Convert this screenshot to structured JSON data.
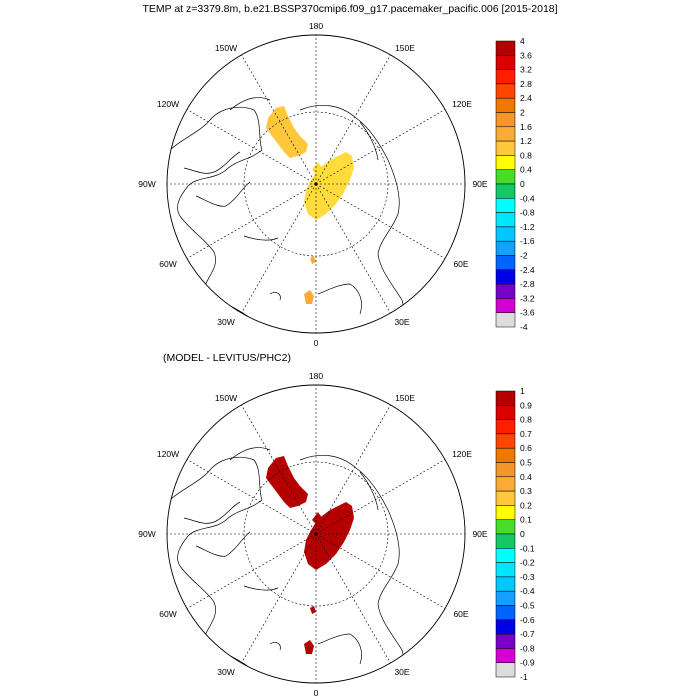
{
  "title": "TEMP at z=3379.8m, b.e21.BSSP370cmip6.f09_g17.pacemaker_pacific.006 [2015-2018]",
  "subtitle": "(MODEL - LEVITUS/PHC2)",
  "top_panel": {
    "lon_labels": {
      "lon_180": "180",
      "lon_150W": "150W",
      "lon_150E": "150E",
      "lon_120W": "120W",
      "lon_120E": "120E",
      "lon_90W": "90W",
      "lon_90E": "90E",
      "lon_60W": "60W",
      "lon_60E": "60E",
      "lon_30W": "30W",
      "lon_30E": "30E",
      "lon_0": "0"
    },
    "colorbar_labels": [
      "4",
      "3.6",
      "3.2",
      "2.8",
      "2.4",
      "2",
      "1.6",
      "1.2",
      "0.8",
      "0.4",
      "0",
      "-0.4",
      "-0.8",
      "-1.2",
      "-1.6",
      "-2",
      "-2.4",
      "-2.8",
      "-3.2",
      "-3.6",
      "-4"
    ],
    "colorbar_colors": [
      "#b40000",
      "#dc0000",
      "#ff1e00",
      "#ff4600",
      "#f07800",
      "#f59628",
      "#faaa37",
      "#ffc83c",
      "#ffff00",
      "#46dc28",
      "#14c864",
      "#00ffff",
      "#00e6ff",
      "#00c8ff",
      "#14a0ff",
      "#0064ff",
      "#0000e6",
      "#7800c8",
      "#d200d2",
      "#dcdcdc",
      "#646464"
    ],
    "field_colors": {
      "region_a": "#ffc83c",
      "region_b": "#ffdc3c",
      "region_c": "#faaa37"
    }
  },
  "bottom_panel": {
    "lon_labels": {
      "lon_180": "180",
      "lon_150W": "150W",
      "lon_150E": "150E",
      "lon_120W": "120W",
      "lon_120E": "120E",
      "lon_90W": "90W",
      "lon_90E": "90E",
      "lon_60W": "60W",
      "lon_60E": "60E",
      "lon_30W": "30W",
      "lon_30E": "30E",
      "lon_0": "0"
    },
    "colorbar_labels": [
      "1",
      "0.9",
      "0.8",
      "0.7",
      "0.6",
      "0.5",
      "0.4",
      "0.3",
      "0.2",
      "0.1",
      "0",
      "-0.1",
      "-0.2",
      "-0.3",
      "-0.4",
      "-0.5",
      "-0.6",
      "-0.7",
      "-0.8",
      "-0.9",
      "-1"
    ],
    "colorbar_colors": [
      "#b40000",
      "#dc0000",
      "#ff1e00",
      "#ff4600",
      "#f07800",
      "#f59628",
      "#faaa37",
      "#ffc83c",
      "#ffff00",
      "#46dc28",
      "#14c864",
      "#00ffff",
      "#00e6ff",
      "#00c8ff",
      "#14a0ff",
      "#0064ff",
      "#0000e6",
      "#7800c8",
      "#d200d2",
      "#dcdcdc",
      "#646464"
    ],
    "field_colors": {
      "region_a": "#b40000",
      "region_b": "#b40000",
      "region_c": "#b40000"
    }
  },
  "colors": {
    "coast": "#000000",
    "grid": "#000000",
    "background": "#ffffff"
  }
}
